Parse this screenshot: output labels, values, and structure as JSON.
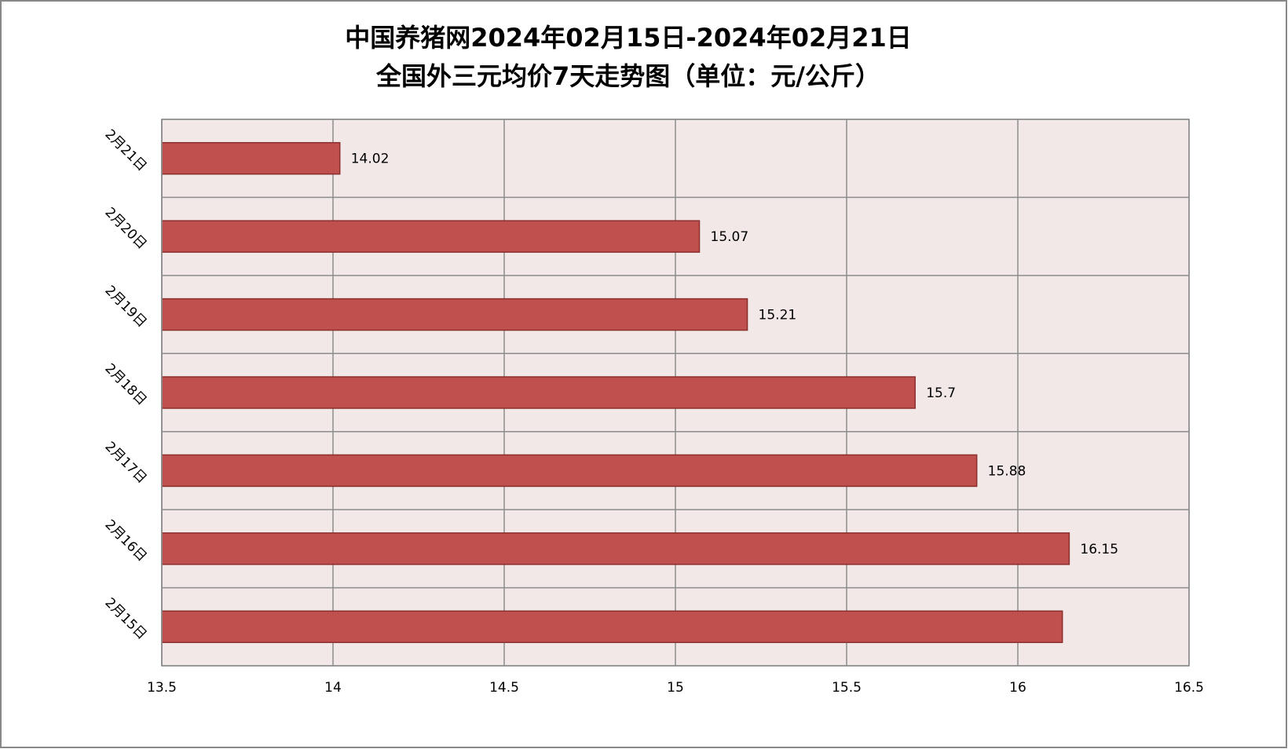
{
  "chart_data": {
    "type": "hbar",
    "title_lines": [
      "中国养猪网2024年02月15日-2024年02月21日",
      "全国外三元均价7天走势图（单位：元/公斤）"
    ],
    "categories": [
      "2月15日",
      "2月16日",
      "2月17日",
      "2月18日",
      "2月19日",
      "2月20日",
      "2月21日"
    ],
    "values": [
      16.13,
      16.15,
      15.88,
      15.7,
      15.21,
      15.07,
      14.02
    ],
    "value_labels": [
      null,
      "16.15",
      "15.88",
      "15.7",
      "15.21",
      "15.07",
      "14.02"
    ],
    "color": "#c0504d",
    "xlim": [
      13.5,
      16.5
    ],
    "xticks": [
      13.5,
      14,
      14.5,
      15,
      15.5,
      16,
      16.5
    ],
    "grid": true
  }
}
